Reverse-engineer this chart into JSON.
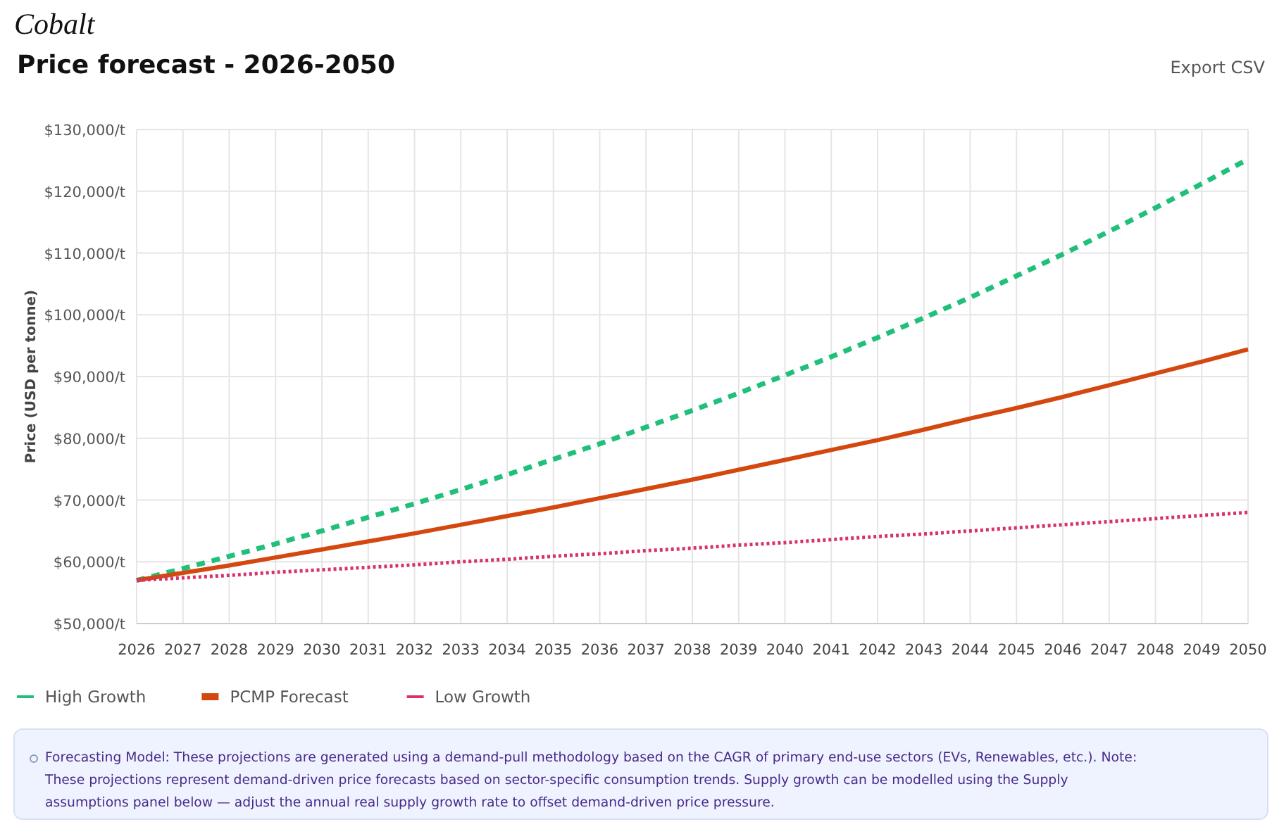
{
  "chart_data": {
    "type": "line",
    "title": "Cobalt",
    "subtitle": "Price forecast - 2026-2050",
    "ylabel": "Price (USD per tonne)",
    "x": [
      2026,
      2027,
      2028,
      2029,
      2030,
      2031,
      2032,
      2033,
      2034,
      2035,
      2036,
      2037,
      2038,
      2039,
      2040,
      2041,
      2042,
      2043,
      2044,
      2045,
      2046,
      2047,
      2048,
      2049,
      2050
    ],
    "series": [
      {
        "name": "High Growth",
        "color": "#20c07a",
        "line_style": "dashed",
        "values": [
          57000,
          58900,
          60900,
          62900,
          65000,
          67200,
          69400,
          71700,
          74100,
          76600,
          79100,
          81800,
          84500,
          87300,
          90200,
          93200,
          96300,
          99500,
          102800,
          106300,
          109800,
          113500,
          117300,
          121200,
          125200
        ]
      },
      {
        "name": "PCMP Forecast",
        "color": "#d4480f",
        "line_style": "solid",
        "values": [
          57000,
          58200,
          59400,
          60700,
          62000,
          63300,
          64600,
          66000,
          67400,
          68800,
          70300,
          71800,
          73300,
          74900,
          76500,
          78100,
          79700,
          81400,
          83200,
          84900,
          86700,
          88600,
          90500,
          92400,
          94400
        ]
      },
      {
        "name": "Low Growth",
        "color": "#d6336c",
        "line_style": "dotted",
        "values": [
          57000,
          57400,
          57800,
          58300,
          58700,
          59100,
          59500,
          60000,
          60400,
          60900,
          61300,
          61800,
          62200,
          62700,
          63100,
          63600,
          64100,
          64500,
          65000,
          65500,
          66000,
          66500,
          67000,
          67500,
          68000
        ]
      }
    ],
    "xlim": [
      2026,
      2050
    ],
    "xticks": [
      2026,
      2027,
      2028,
      2029,
      2030,
      2031,
      2032,
      2033,
      2034,
      2035,
      2036,
      2037,
      2038,
      2039,
      2040,
      2041,
      2042,
      2043,
      2044,
      2045,
      2046,
      2047,
      2048,
      2049,
      2050
    ],
    "ylim": [
      50000,
      130000
    ],
    "yticks": [
      {
        "value": 50000,
        "label": "$50,000/t"
      },
      {
        "value": 60000,
        "label": "$60,000/t"
      },
      {
        "value": 70000,
        "label": "$70,000/t"
      },
      {
        "value": 80000,
        "label": "$80,000/t"
      },
      {
        "value": 90000,
        "label": "$90,000/t"
      },
      {
        "value": 100000,
        "label": "$100,000/t"
      },
      {
        "value": 110000,
        "label": "$110,000/t"
      },
      {
        "value": 120000,
        "label": "$120,000/t"
      },
      {
        "value": 130000,
        "label": "$130,000/t"
      }
    ],
    "grid": true,
    "legend": "bottom left",
    "annotations": [
      "Export CSV",
      "Forecasting Model: These projections are generated using a demand-pull methodology based on the CAGR of primary end-use sectors (EVs, Renewables, etc.). Note: These projections represent demand-driven price forecasts based on sector-specific consumption trends. Supply growth can be modelled using the Supply assumptions panel below — adjust the annual real supply growth rate to offset demand-driven price pressure."
    ]
  }
}
